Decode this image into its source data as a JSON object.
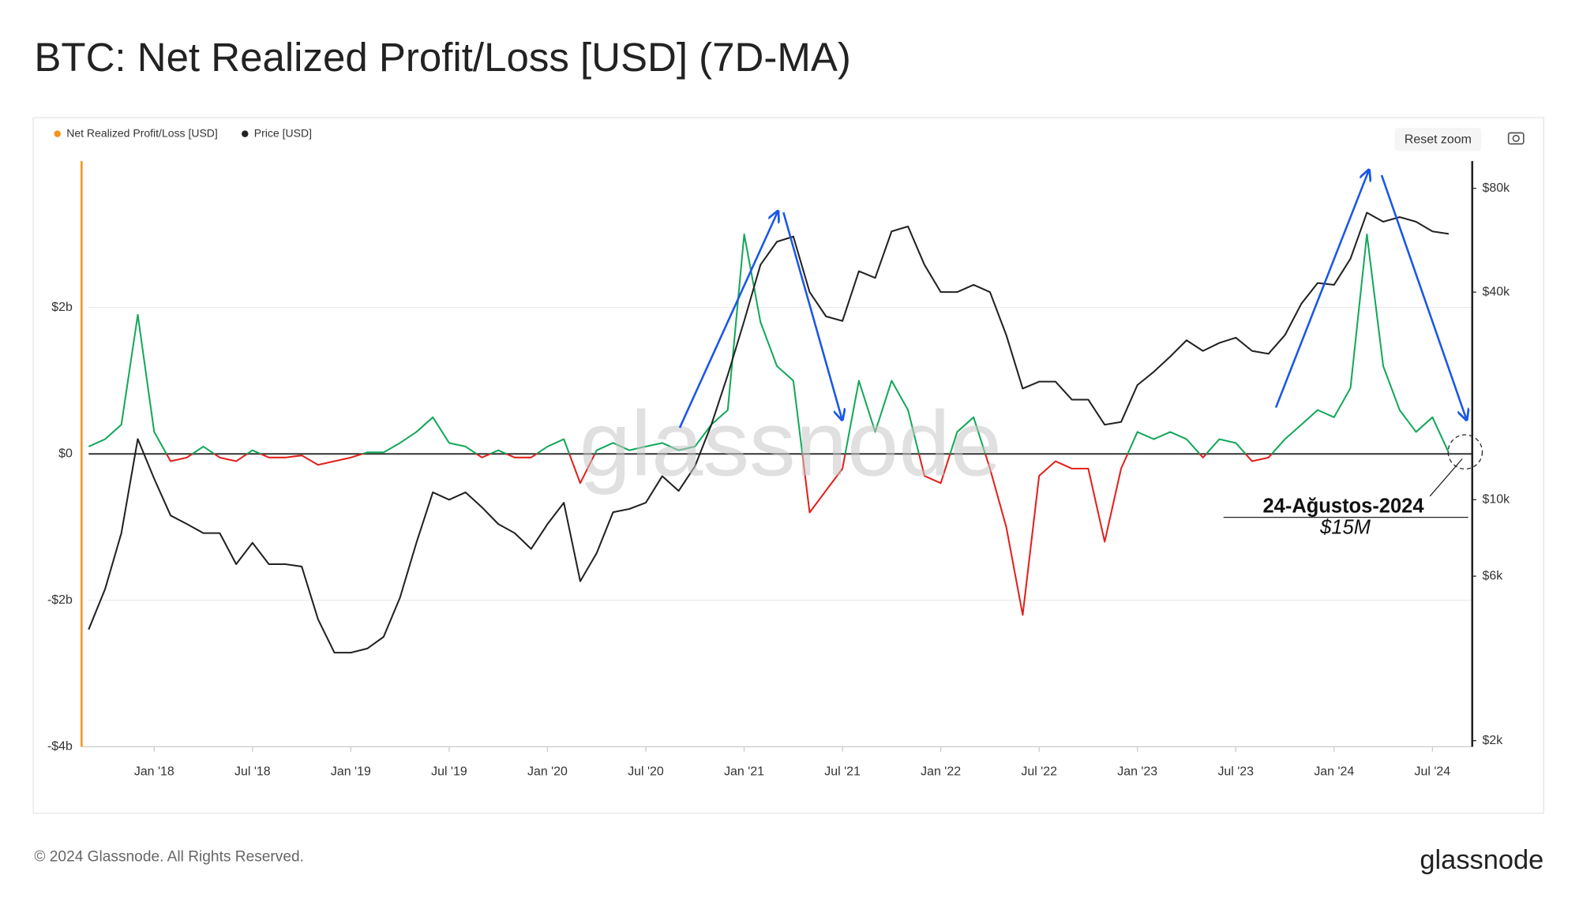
{
  "chart_data": {
    "type": "line",
    "title": "BTC: Net Realized Profit/Loss [USD] (7D-MA)",
    "x": [
      "2017-09",
      "2017-10",
      "2017-11",
      "2017-12",
      "2018-01",
      "2018-02",
      "2018-03",
      "2018-04",
      "2018-05",
      "2018-06",
      "2018-07",
      "2018-08",
      "2018-09",
      "2018-10",
      "2018-11",
      "2018-12",
      "2019-01",
      "2019-02",
      "2019-03",
      "2019-04",
      "2019-05",
      "2019-06",
      "2019-07",
      "2019-08",
      "2019-09",
      "2019-10",
      "2019-11",
      "2019-12",
      "2020-01",
      "2020-02",
      "2020-03",
      "2020-04",
      "2020-05",
      "2020-06",
      "2020-07",
      "2020-08",
      "2020-09",
      "2020-10",
      "2020-11",
      "2020-12",
      "2021-01",
      "2021-02",
      "2021-03",
      "2021-04",
      "2021-05",
      "2021-06",
      "2021-07",
      "2021-08",
      "2021-09",
      "2021-10",
      "2021-11",
      "2021-12",
      "2022-01",
      "2022-02",
      "2022-03",
      "2022-04",
      "2022-05",
      "2022-06",
      "2022-07",
      "2022-08",
      "2022-09",
      "2022-10",
      "2022-11",
      "2022-12",
      "2023-01",
      "2023-02",
      "2023-03",
      "2023-04",
      "2023-05",
      "2023-06",
      "2023-07",
      "2023-08",
      "2023-09",
      "2023-10",
      "2023-11",
      "2023-12",
      "2024-01",
      "2024-02",
      "2024-03",
      "2024-04",
      "2024-05",
      "2024-06",
      "2024-07",
      "2024-08"
    ],
    "series": [
      {
        "name": "Net Realized Profit/Loss [USD]",
        "color": "#f7931a",
        "positive_color": "#14a85a",
        "negative_color": "#e3201b",
        "values": [
          100000000.0,
          200000000.0,
          400000000.0,
          1900000000.0,
          300000000.0,
          -100000000.0,
          -50000000.0,
          100000000.0,
          -50000000.0,
          -100000000.0,
          50000000.0,
          -50000000.0,
          -50000000.0,
          -20000000.0,
          -150000000.0,
          -100000000.0,
          -50000000.0,
          20000000.0,
          20000000.0,
          150000000.0,
          300000000.0,
          500000000.0,
          150000000.0,
          100000000.0,
          -50000000.0,
          50000000.0,
          -50000000.0,
          -50000000.0,
          100000000.0,
          200000000.0,
          -400000000.0,
          50000000.0,
          150000000.0,
          50000000.0,
          100000000.0,
          150000000.0,
          50000000.0,
          100000000.0,
          400000000.0,
          600000000.0,
          3000000000.0,
          1800000000.0,
          1200000000.0,
          1000000000.0,
          -800000000.0,
          -500000000.0,
          -200000000.0,
          1000000000.0,
          300000000.0,
          1000000000.0,
          600000000.0,
          -300000000.0,
          -400000000.0,
          300000000.0,
          500000000.0,
          -200000000.0,
          -1000000000.0,
          -2200000000.0,
          -300000000.0,
          -100000000.0,
          -200000000.0,
          -200000000.0,
          -1200000000.0,
          -200000000.0,
          300000000.0,
          200000000.0,
          300000000.0,
          200000000.0,
          -50000000.0,
          200000000.0,
          150000000.0,
          -100000000.0,
          -50000000.0,
          200000000.0,
          400000000.0,
          600000000.0,
          500000000.0,
          900000000.0,
          3000000000.0,
          1200000000.0,
          600000000.0,
          300000000.0,
          500000000.0,
          15000000.0
        ]
      },
      {
        "name": "Price [USD]",
        "color": "#222222",
        "axis": "y2",
        "values": [
          4200,
          5500,
          8000,
          15000,
          11500,
          9000,
          8500,
          8000,
          8000,
          6500,
          7500,
          6500,
          6500,
          6400,
          4500,
          3600,
          3600,
          3700,
          4000,
          5200,
          7500,
          10500,
          10000,
          10500,
          9500,
          8500,
          8000,
          7200,
          8500,
          9800,
          5800,
          7000,
          9200,
          9400,
          9800,
          11700,
          10600,
          12500,
          16500,
          23000,
          33000,
          48000,
          56000,
          58000,
          40000,
          34000,
          33000,
          46000,
          44000,
          60000,
          62000,
          48000,
          40000,
          40000,
          42000,
          40000,
          30000,
          21000,
          22000,
          22000,
          19500,
          19500,
          16500,
          16800,
          21500,
          23500,
          26000,
          29000,
          27000,
          28500,
          29500,
          27000,
          26500,
          30000,
          37000,
          42500,
          42000,
          50000,
          68000,
          64000,
          66000,
          64000,
          60000,
          59000
        ]
      }
    ],
    "xlim": [
      "2017-09",
      "2024-09"
    ],
    "xticks": [
      {
        "value": "2018-01",
        "label": "Jan '18"
      },
      {
        "value": "2018-07",
        "label": "Jul '18"
      },
      {
        "value": "2019-01",
        "label": "Jan '19"
      },
      {
        "value": "2019-07",
        "label": "Jul '19"
      },
      {
        "value": "2020-01",
        "label": "Jan '20"
      },
      {
        "value": "2020-07",
        "label": "Jul '20"
      },
      {
        "value": "2021-01",
        "label": "Jan '21"
      },
      {
        "value": "2021-07",
        "label": "Jul '21"
      },
      {
        "value": "2022-01",
        "label": "Jan '22"
      },
      {
        "value": "2022-07",
        "label": "Jul '22"
      },
      {
        "value": "2023-01",
        "label": "Jan '23"
      },
      {
        "value": "2023-07",
        "label": "Jul '23"
      },
      {
        "value": "2024-01",
        "label": "Jan '24"
      },
      {
        "value": "2024-07",
        "label": "Jul '24"
      }
    ],
    "ylim": [
      -4000000000.0,
      4000000000.0
    ],
    "yticks": [
      {
        "value": 2000000000.0,
        "label": "$2b"
      },
      {
        "value": 0,
        "label": "$0"
      },
      {
        "value": -2000000000.0,
        "label": "-$2b"
      },
      {
        "value": -4000000000.0,
        "label": "-$4b"
      }
    ],
    "y2lim": [
      1920,
      96000
    ],
    "y2_log": true,
    "y2ticks": [
      {
        "value": 2000,
        "label": "$2k"
      },
      {
        "value": 6000,
        "label": "$6k"
      },
      {
        "value": 10000,
        "label": "$10k"
      },
      {
        "value": 40000,
        "label": "$40k"
      },
      {
        "value": 80000,
        "label": "$80k"
      }
    ],
    "grid": true,
    "legend": "top-left",
    "watermark": "glassnode",
    "annotation": {
      "date": "24-Ağustos-2024",
      "value": "$15M"
    }
  },
  "button": "Reset zoom",
  "footer": {
    "copyright": "© 2024 Glassnode. All Rights Reserved.",
    "logo": "glassnode"
  }
}
